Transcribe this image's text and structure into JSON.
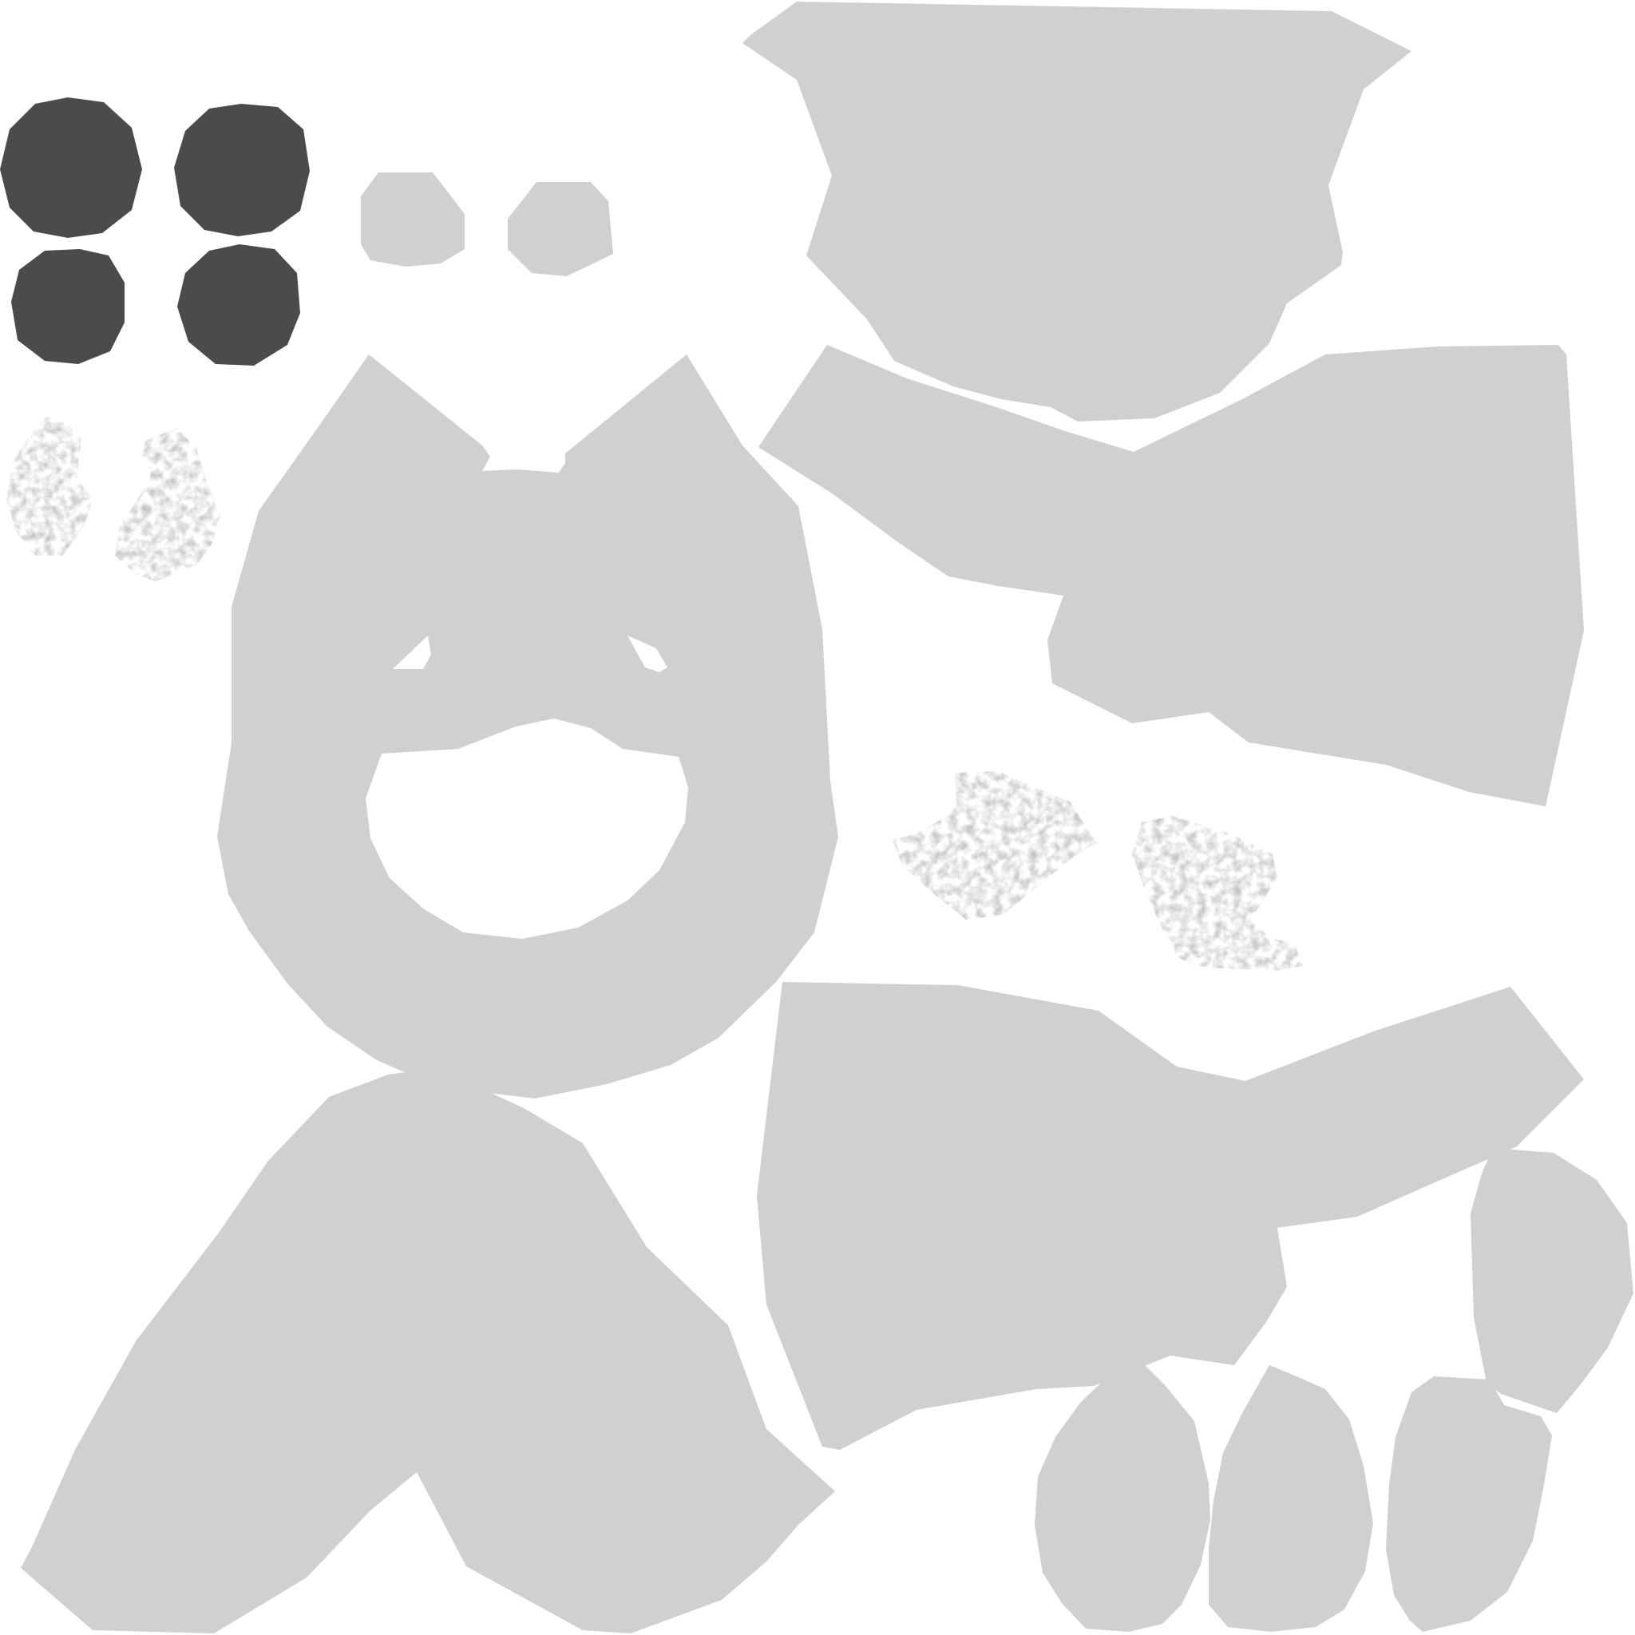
{
  "colors": {
    "background": "#ffffff",
    "island": "#d0d0d0",
    "dark": "#4b4b4b",
    "noise_light": "#e6e6e6",
    "noise_dark": "#6a6a6a"
  },
  "islands": [
    {
      "name": "pupil-island",
      "tone": "dark"
    },
    {
      "name": "body-island",
      "tone": "light"
    },
    {
      "name": "textured-paw-island",
      "tone": "noise"
    }
  ]
}
